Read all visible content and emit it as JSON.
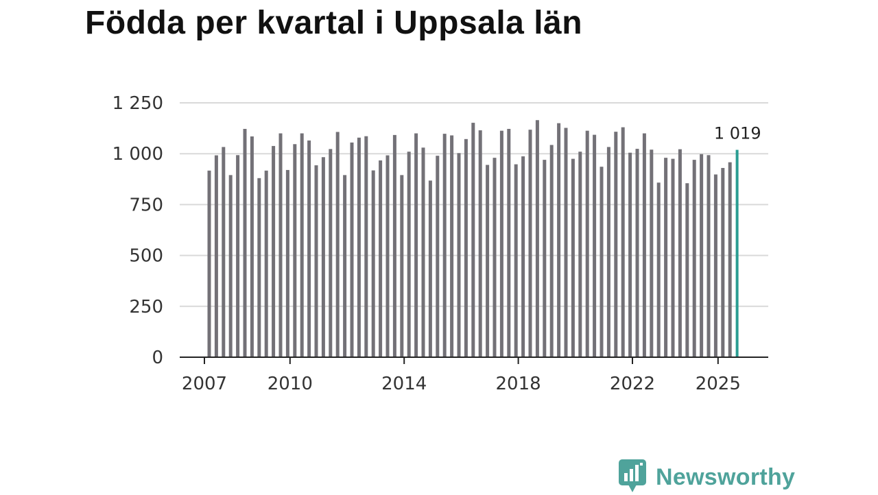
{
  "title": "Födda per kvartal i Uppsala län",
  "brand": {
    "name": "Newsworthy",
    "color": "#4fa39b",
    "icon": "bar-chart-speech-bubble-icon"
  },
  "colors": {
    "bar": "#737177",
    "highlight": "#2a9d92",
    "grid": "#d9d9d9",
    "axis": "#222222"
  },
  "chart_data": {
    "type": "bar",
    "title": "Födda per kvartal i Uppsala län",
    "xlabel": "",
    "ylabel": "",
    "ylim": [
      0,
      1250
    ],
    "yticks": [
      {
        "value": 0,
        "label": "0"
      },
      {
        "value": 250,
        "label": "250"
      },
      {
        "value": 500,
        "label": "500"
      },
      {
        "value": 750,
        "label": "750"
      },
      {
        "value": 1000,
        "label": "1 000"
      },
      {
        "value": 1250,
        "label": "1 250"
      }
    ],
    "xticks": [
      {
        "year": 2007,
        "label": "2007"
      },
      {
        "year": 2010,
        "label": "2010"
      },
      {
        "year": 2014,
        "label": "2014"
      },
      {
        "year": 2018,
        "label": "2018"
      },
      {
        "year": 2022,
        "label": "2022"
      },
      {
        "year": 2025,
        "label": "2025"
      }
    ],
    "start": {
      "year": 2007,
      "quarter": 1
    },
    "values": [
      917,
      992,
      1033,
      895,
      993,
      1122,
      1085,
      880,
      917,
      1038,
      1100,
      920,
      1047,
      1100,
      1065,
      943,
      983,
      1023,
      1107,
      895,
      1055,
      1079,
      1086,
      918,
      967,
      992,
      1092,
      895,
      1010,
      1100,
      1030,
      868,
      990,
      1098,
      1090,
      1003,
      1072,
      1152,
      1115,
      945,
      980,
      1113,
      1122,
      948,
      987,
      1118,
      1165,
      970,
      1043,
      1150,
      1127,
      975,
      1010,
      1113,
      1093,
      936,
      1033,
      1108,
      1130,
      1005,
      1024,
      1100,
      1020,
      858,
      980,
      975,
      1022,
      855,
      970,
      998,
      993,
      898,
      930,
      958,
      1019
    ],
    "highlight": {
      "index": 74,
      "label": "1 019"
    }
  }
}
